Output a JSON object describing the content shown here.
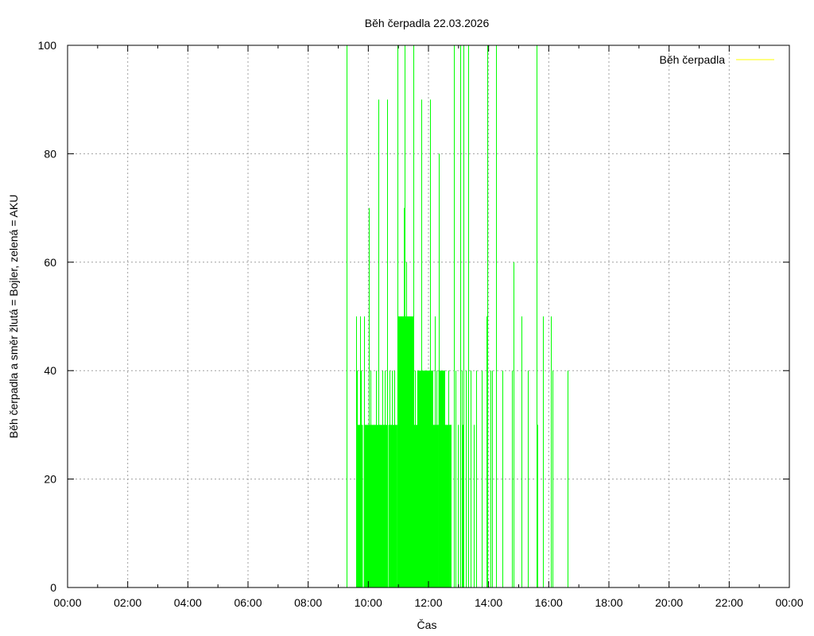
{
  "chart_data": {
    "type": "bar",
    "title": "Běh čerpadla 22.03.2026",
    "xlabel": "Čas",
    "ylabel": "Běh čerpadla a směr žlutá = Bojler, zelená = AKU",
    "xlim": [
      "00:00",
      "24:00"
    ],
    "ylim": [
      0,
      100
    ],
    "x_ticks": [
      "00:00",
      "02:00",
      "04:00",
      "06:00",
      "08:00",
      "10:00",
      "12:00",
      "14:00",
      "16:00",
      "18:00",
      "20:00",
      "22:00",
      "00:00"
    ],
    "y_ticks": [
      0,
      20,
      40,
      60,
      80,
      100
    ],
    "grid": true,
    "legend": {
      "position": "top-right",
      "entries": [
        {
          "label": "Běh čerpadla",
          "color": "#ffff00"
        }
      ]
    },
    "series": [
      {
        "name": "zelená = AKU",
        "color": "#00ff00",
        "spikes": [
          {
            "t": "09:17",
            "v": 100
          },
          {
            "t": "09:35",
            "v": 50
          },
          {
            "t": "09:37",
            "v": 40
          },
          {
            "t": "09:43",
            "v": 50
          },
          {
            "t": "09:45",
            "v": 40
          },
          {
            "t": "09:51",
            "v": 50
          },
          {
            "t": "09:52",
            "v": 40
          },
          {
            "t": "10:01",
            "v": 70
          },
          {
            "t": "10:04",
            "v": 40
          },
          {
            "t": "10:15",
            "v": 40
          },
          {
            "t": "10:20",
            "v": 90
          },
          {
            "t": "10:28",
            "v": 40
          },
          {
            "t": "10:33",
            "v": 40
          },
          {
            "t": "10:38",
            "v": 90
          },
          {
            "t": "10:42",
            "v": 40
          },
          {
            "t": "10:47",
            "v": 40
          },
          {
            "t": "10:52",
            "v": 40
          },
          {
            "t": "10:58",
            "v": 100
          },
          {
            "t": "11:00",
            "v": 50
          },
          {
            "t": "11:05",
            "v": 50
          },
          {
            "t": "11:12",
            "v": 100
          },
          {
            "t": "11:11",
            "v": 70
          },
          {
            "t": "11:15",
            "v": 60
          },
          {
            "t": "11:30",
            "v": 100
          },
          {
            "t": "11:33",
            "v": 40
          },
          {
            "t": "11:38",
            "v": 40
          },
          {
            "t": "11:46",
            "v": 90
          },
          {
            "t": "11:52",
            "v": 40
          },
          {
            "t": "12:03",
            "v": 90
          },
          {
            "t": "12:08",
            "v": 40
          },
          {
            "t": "12:12",
            "v": 50
          },
          {
            "t": "12:16",
            "v": 40
          },
          {
            "t": "12:20",
            "v": 80
          },
          {
            "t": "12:31",
            "v": 40
          },
          {
            "t": "12:40",
            "v": 40
          },
          {
            "t": "12:45",
            "v": 30
          },
          {
            "t": "12:50",
            "v": 100
          },
          {
            "t": "12:54",
            "v": 40
          },
          {
            "t": "12:58",
            "v": 30
          },
          {
            "t": "13:03",
            "v": 100
          },
          {
            "t": "13:06",
            "v": 40
          },
          {
            "t": "13:08",
            "v": 30
          },
          {
            "t": "13:10",
            "v": 100
          },
          {
            "t": "13:14",
            "v": 40
          },
          {
            "t": "13:20",
            "v": 100
          },
          {
            "t": "13:24",
            "v": 40
          },
          {
            "t": "13:30",
            "v": 30
          },
          {
            "t": "13:35",
            "v": 40
          },
          {
            "t": "13:46",
            "v": 40
          },
          {
            "t": "13:55",
            "v": 50
          },
          {
            "t": "13:58",
            "v": 100
          },
          {
            "t": "14:03",
            "v": 40
          },
          {
            "t": "14:07",
            "v": 40
          },
          {
            "t": "14:15",
            "v": 100
          },
          {
            "t": "14:27",
            "v": 40
          },
          {
            "t": "14:46",
            "v": 40
          },
          {
            "t": "14:49",
            "v": 60
          },
          {
            "t": "15:05",
            "v": 50
          },
          {
            "t": "15:18",
            "v": 40
          },
          {
            "t": "15:36",
            "v": 100
          },
          {
            "t": "15:37",
            "v": 30
          },
          {
            "t": "15:49",
            "v": 50
          },
          {
            "t": "16:05",
            "v": 50
          },
          {
            "t": "16:08",
            "v": 40
          },
          {
            "t": "16:38",
            "v": 40
          }
        ],
        "blocks": [
          {
            "start": "09:38",
            "end": "09:49",
            "v": 30
          },
          {
            "start": "09:51",
            "end": "10:38",
            "v": 30
          },
          {
            "start": "10:40",
            "end": "10:58",
            "v": 30
          },
          {
            "start": "10:58",
            "end": "11:30",
            "v": 50
          },
          {
            "start": "11:08",
            "end": "11:26",
            "v": 40
          },
          {
            "start": "11:30",
            "end": "11:56",
            "v": 30
          },
          {
            "start": "11:38",
            "end": "12:08",
            "v": 40
          },
          {
            "start": "11:56",
            "end": "12:20",
            "v": 30
          },
          {
            "start": "12:20",
            "end": "12:33",
            "v": 40
          },
          {
            "start": "12:20",
            "end": "12:45",
            "v": 30
          }
        ]
      }
    ]
  }
}
